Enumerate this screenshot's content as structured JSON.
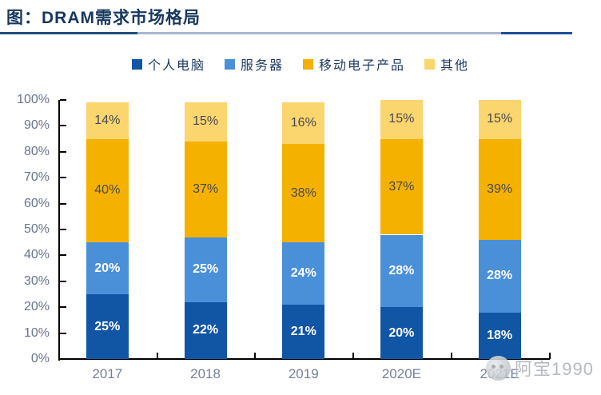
{
  "header": {
    "title": "图：DRAM需求市场格局"
  },
  "watermark": {
    "icon": "panda-avatar-logo",
    "text": "阿宝1990"
  },
  "colors": {
    "title": "#17375E",
    "underline_dark_left": "#1F4E79",
    "underline_light": "#A9B5D2",
    "underline_dark_right": "#1F4E9B",
    "axis_line": "#000000",
    "y_axis_text": "#67738F",
    "x_axis_text": "#74809E",
    "watermark_text": "#A9AEB6"
  },
  "chart_data": {
    "type": "bar",
    "stacked": true,
    "grid": false,
    "legend_position": "top",
    "categories": [
      "2017",
      "2018",
      "2019",
      "2020E",
      "2021E"
    ],
    "series": [
      {
        "name": "个人电脑",
        "color": "#1155A5",
        "label_color": "#FFFFFF",
        "label_bold": true,
        "values": [
          25,
          22,
          21,
          20,
          18
        ]
      },
      {
        "name": "服务器",
        "color": "#4A90D8",
        "label_color": "#FFFFFF",
        "label_bold": true,
        "values": [
          20,
          25,
          24,
          28,
          28
        ]
      },
      {
        "name": "移动电子产品",
        "color": "#F5B100",
        "label_color": "#46494E",
        "label_bold": false,
        "values": [
          40,
          37,
          38,
          37,
          39
        ]
      },
      {
        "name": "其他",
        "color": "#FBD56E",
        "label_color": "#46494E",
        "label_bold": false,
        "values": [
          14,
          15,
          16,
          15,
          15
        ]
      }
    ],
    "value_suffix": "%",
    "ylim": [
      0,
      100
    ],
    "y_tick_step": 10,
    "y_tick_labels": [
      "0%",
      "10%",
      "20%",
      "30%",
      "40%",
      "50%",
      "60%",
      "70%",
      "80%",
      "90%",
      "100%"
    ]
  }
}
